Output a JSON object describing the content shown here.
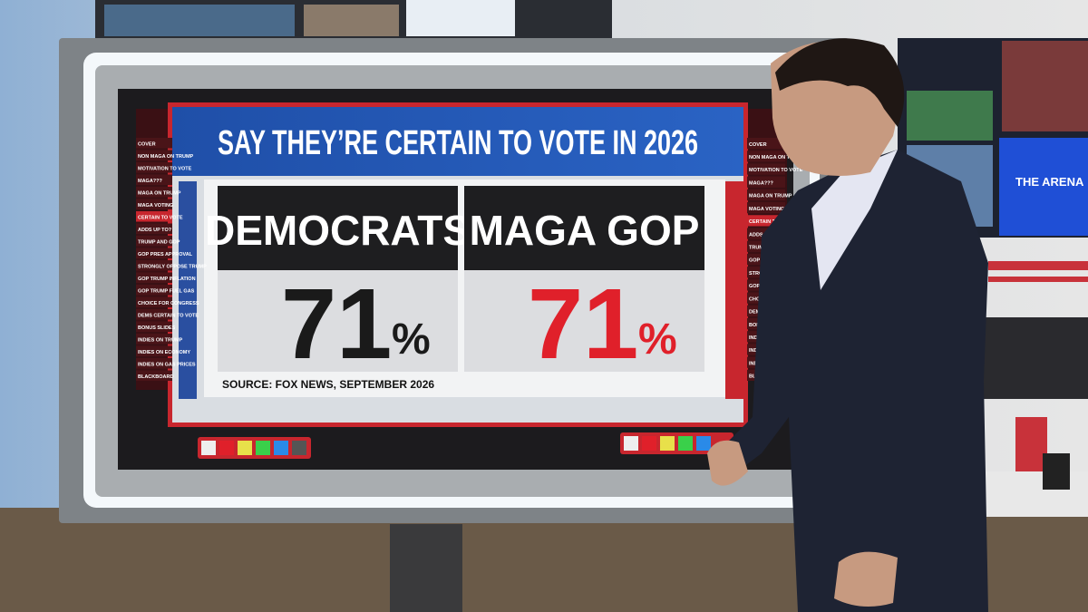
{
  "graphic": {
    "title": "SAY THEY’RE CERTAIN TO VOTE IN 2026",
    "panels": [
      {
        "label": "DEMOCRATS",
        "value": 71,
        "unit": "%",
        "color": "#1a1a1a"
      },
      {
        "label": "MAGA GOP",
        "value": 71,
        "unit": "%",
        "color": "#e0202a"
      }
    ],
    "source": "SOURCE: FOX NEWS, SEPTEMBER 2026"
  },
  "left_menu": [
    "COVER",
    "NON MAGA ON TRUMP",
    "MOTIVATION TO VOTE",
    "MAGA???",
    "MAGA ON TRUMP",
    "MAGA VOTING",
    "CERTAIN TO VOTE",
    "ADDS UP TO?",
    "TRUMP AND GOP",
    "GOP PRES APPROVAL",
    "STRONGLY OPPOSE TRUMP",
    "GOP TRUMP INFLATION",
    "GOP TRUMP FUEL GAS",
    "CHOICE FOR CONGRESS",
    "DEMS CERTAIN TO VOTE",
    "BONUS SLIDES",
    "INDIES ON TRUMP",
    "INDIES ON ECONOMY",
    "INDIES ON GAS PRICES",
    "BLACKBOARD"
  ],
  "right_menu": [
    "COVER",
    "NON MAGA ON TRUMP",
    "MOTIVATION TO VOTE",
    "MAGA???",
    "MAGA ON TRUMP",
    "MAGA VOTING",
    "CERTAIN TO VOTE",
    "ADDS UP TO?",
    "TRUMP AND GOP",
    "GOP PRES APPROVAL",
    "STRONGLY OPPOSE TRUMP",
    "GOP TRUMP INFLATION",
    "CHOICE FOR CONGRESS",
    "DEMS CERTAIN TO VOTE",
    "BONUS SLIDES",
    "INDIES ON TRUMP",
    "INDIES ON ECONOMY",
    "INDIES ON GAS PRICES",
    "BLACKBOARD"
  ],
  "studio": {
    "monitor_text": "THE ARENA"
  }
}
